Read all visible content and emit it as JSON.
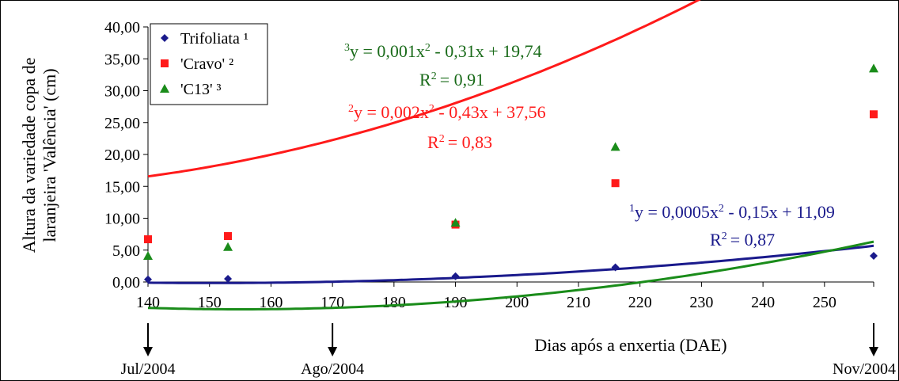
{
  "chart_data": {
    "type": "scatter",
    "x_label": "Dias após a enxertia (DAE)",
    "y_label_line1": "Altura da variedade copa de",
    "y_label_line2": "laranjeira 'Valência' (cm)",
    "x_range": [
      140,
      258
    ],
    "y_range": [
      0,
      40
    ],
    "x_ticks": [
      140,
      150,
      160,
      170,
      180,
      190,
      200,
      210,
      220,
      230,
      240,
      250
    ],
    "y_ticks": [
      "0,00",
      "5,00",
      "10,00",
      "15,00",
      "20,00",
      "25,00",
      "30,00",
      "35,00",
      "40,00"
    ],
    "legend_position": "top-left",
    "series": [
      {
        "name": "Trifoliata ¹",
        "marker": "diamond",
        "color": "#1a1a8c",
        "x": [
          140,
          153,
          190,
          216,
          258
        ],
        "y": [
          0.4,
          0.5,
          0.9,
          2.3,
          4.1
        ],
        "fit": [
          0.0005,
          -0.15,
          11.09
        ],
        "equation_sup": "1",
        "equation_text": "y = 0,0005x",
        "equation_rest": " - 0,15x + 11,09",
        "r2_text": "= 0,87"
      },
      {
        "name": "'Cravo' ²",
        "marker": "square",
        "color": "#ff1a1a",
        "x": [
          140,
          153,
          190,
          216,
          258
        ],
        "y": [
          6.7,
          7.2,
          9.0,
          15.5,
          26.3
        ],
        "fit": [
          0.002,
          -0.43,
          37.56
        ],
        "equation_sup": "2",
        "equation_text": "y = 0,002x",
        "equation_rest": " - 0,43x + 37,56",
        "r2_text": "= 0,83"
      },
      {
        "name": "'C13' ³",
        "marker": "triangle",
        "color": "#1a8c1a",
        "x": [
          140,
          153,
          190,
          216,
          258
        ],
        "y": [
          4.1,
          5.5,
          9.3,
          21.2,
          33.5
        ],
        "fit": [
          0.001,
          -0.31,
          19.74
        ],
        "equation_sup": "3",
        "equation_text": "y = 0,001x",
        "equation_rest": " - 0,31x + 19,74",
        "r2_text": "= 0,91"
      }
    ],
    "month_markers": [
      {
        "label": "Jul/2004",
        "x": 140
      },
      {
        "label": "Ago/2004",
        "x": 170
      },
      {
        "label": "Nov/2004",
        "x": 258
      }
    ]
  }
}
